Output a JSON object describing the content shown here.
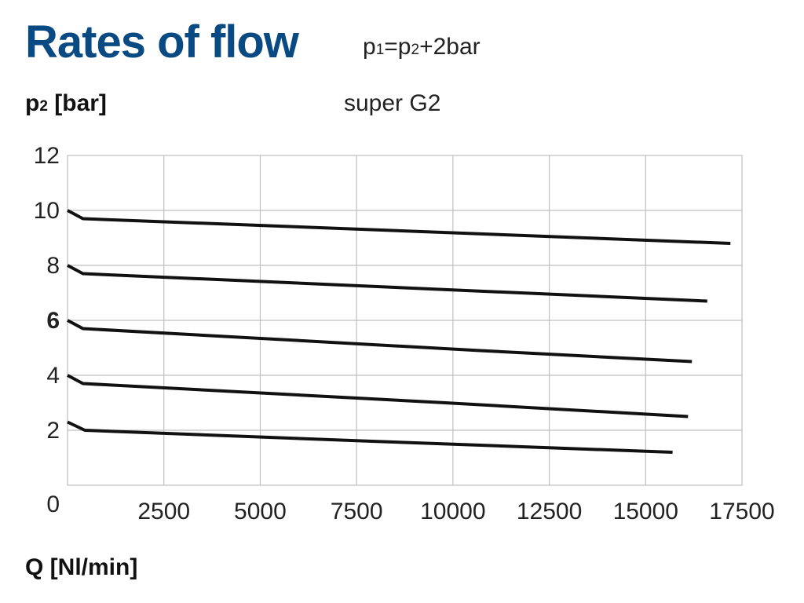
{
  "title": "Rates of flow",
  "formula": {
    "p1": "p",
    "p1_sub": "1",
    "eq": "=",
    "p2": "p",
    "p2_sub": "2",
    "plus": "+2",
    "unit": "bar"
  },
  "chart_data": {
    "type": "line",
    "title": "Rates of flow",
    "subtitle": "super G2",
    "ylabel": {
      "symbol": "p",
      "sub": "2",
      "unit": "[bar]"
    },
    "xlabel": "Q [Nl/min]",
    "xlim": [
      0,
      17500
    ],
    "ylim": [
      0,
      12
    ],
    "xticks": [
      2500,
      5000,
      7500,
      10000,
      12500,
      15000,
      17500
    ],
    "yticks": [
      0,
      2,
      4,
      6,
      8,
      10,
      12
    ],
    "emphasized_ytick": 6,
    "grid": true,
    "series": [
      {
        "x": [
          0,
          400,
          17200
        ],
        "y": [
          10.0,
          9.7,
          8.8
        ]
      },
      {
        "x": [
          0,
          400,
          16600
        ],
        "y": [
          8.0,
          7.7,
          6.7
        ]
      },
      {
        "x": [
          0,
          400,
          10700,
          10700,
          16200
        ],
        "y": [
          6.0,
          5.7,
          4.9,
          4.9,
          4.5
        ]
      },
      {
        "x": [
          0,
          400,
          9800,
          9800,
          16100
        ],
        "y": [
          4.0,
          3.7,
          3.0,
          3.0,
          2.5
        ]
      },
      {
        "x": [
          0,
          450,
          7900,
          7900,
          15700
        ],
        "y": [
          2.3,
          2.0,
          1.6,
          1.6,
          1.2
        ]
      }
    ],
    "colors": {
      "line": "#111111",
      "grid": "#bfbfbf",
      "title": "#0a4a82"
    }
  }
}
